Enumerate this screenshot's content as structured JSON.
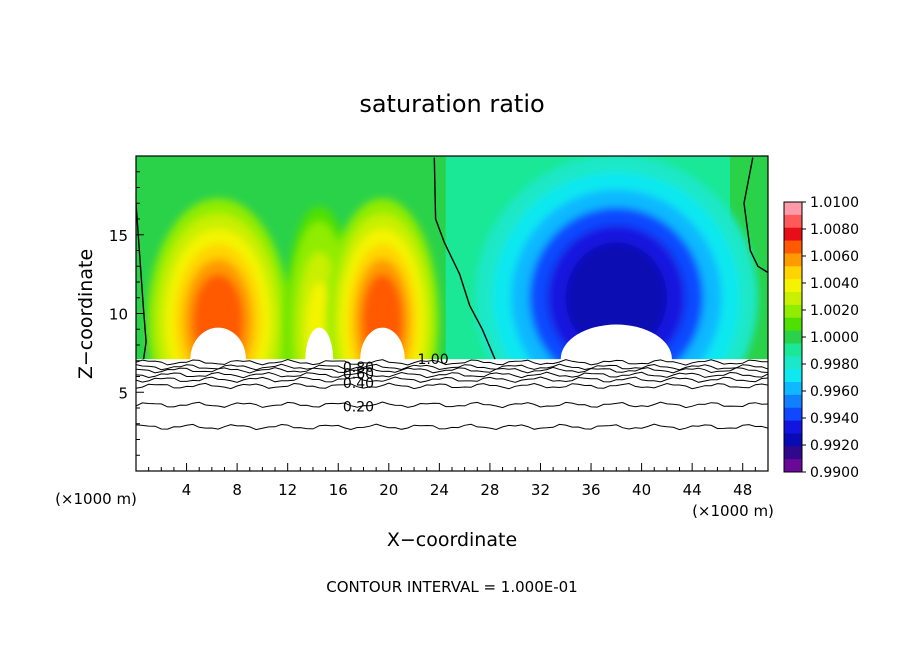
{
  "chart_data": {
    "type": "heatmap",
    "title": "saturation ratio",
    "xlabel": "X−coordinate",
    "ylabel": "Z−coordinate",
    "x_unit_left": "(×1000 m)",
    "x_unit_right": "(×1000 m)",
    "footer": "CONTOUR INTERVAL = 1.000E-01",
    "xlim": [
      0,
      50
    ],
    "ylim": [
      0,
      20
    ],
    "x_ticks": [
      4,
      8,
      12,
      16,
      20,
      24,
      28,
      32,
      36,
      40,
      44,
      48
    ],
    "x_tick_labels": [
      "4",
      "8",
      "12",
      "16",
      "20",
      "24",
      "28",
      "32",
      "36",
      "40",
      "44",
      "48"
    ],
    "y_ticks": [
      5,
      10,
      15
    ],
    "y_tick_labels": [
      "5",
      "10",
      "15"
    ],
    "colorbar": {
      "min": 0.99,
      "max": 1.01,
      "labels": [
        "1.0100",
        "1.0080",
        "1.0060",
        "1.0040",
        "1.0020",
        "1.0000",
        "0.9980",
        "0.9960",
        "0.9940",
        "0.9920",
        "0.9900"
      ],
      "colors": [
        "#ff9aa8",
        "#ff5a5a",
        "#e80e18",
        "#ff5a00",
        "#ff9a00",
        "#ffd400",
        "#f4f400",
        "#c8f000",
        "#90ec00",
        "#50e000",
        "#2ad24a",
        "#1ae896",
        "#1ae8c8",
        "#10e8f0",
        "#10b8ff",
        "#1080ff",
        "#1048ff",
        "#1414e0",
        "#0a0ab4",
        "#30088c",
        "#6a0898"
      ]
    },
    "contour_labels": [
      {
        "text": "1.00",
        "x": 23.5,
        "y": 7.1
      },
      {
        "text": "0.80",
        "x": 17.6,
        "y": 6.6
      },
      {
        "text": "0.60",
        "x": 17.6,
        "y": 6.2
      },
      {
        "text": "0.40",
        "x": 17.6,
        "y": 5.6
      },
      {
        "text": "0.20",
        "x": 17.6,
        "y": 4.1
      }
    ],
    "contour_lines": [
      6.9,
      6.6,
      6.4,
      6.1,
      5.8,
      5.4,
      4.2,
      2.8
    ],
    "ground_height": 7.1,
    "features": [
      {
        "type": "supersaturated-cloud",
        "x": 6.5,
        "width": 4.0,
        "z": 9.5,
        "peak": 1.007
      },
      {
        "type": "supersaturated-cloud",
        "x": 14.5,
        "width": 2.0,
        "z": 9.0,
        "peak": 1.004
      },
      {
        "type": "supersaturated-cloud",
        "x": 19.5,
        "width": 3.2,
        "z": 9.5,
        "peak": 1.0068
      },
      {
        "type": "subsaturated-region",
        "x": 38.0,
        "width": 8.0,
        "z": 11.0,
        "peak": 0.992
      }
    ]
  }
}
